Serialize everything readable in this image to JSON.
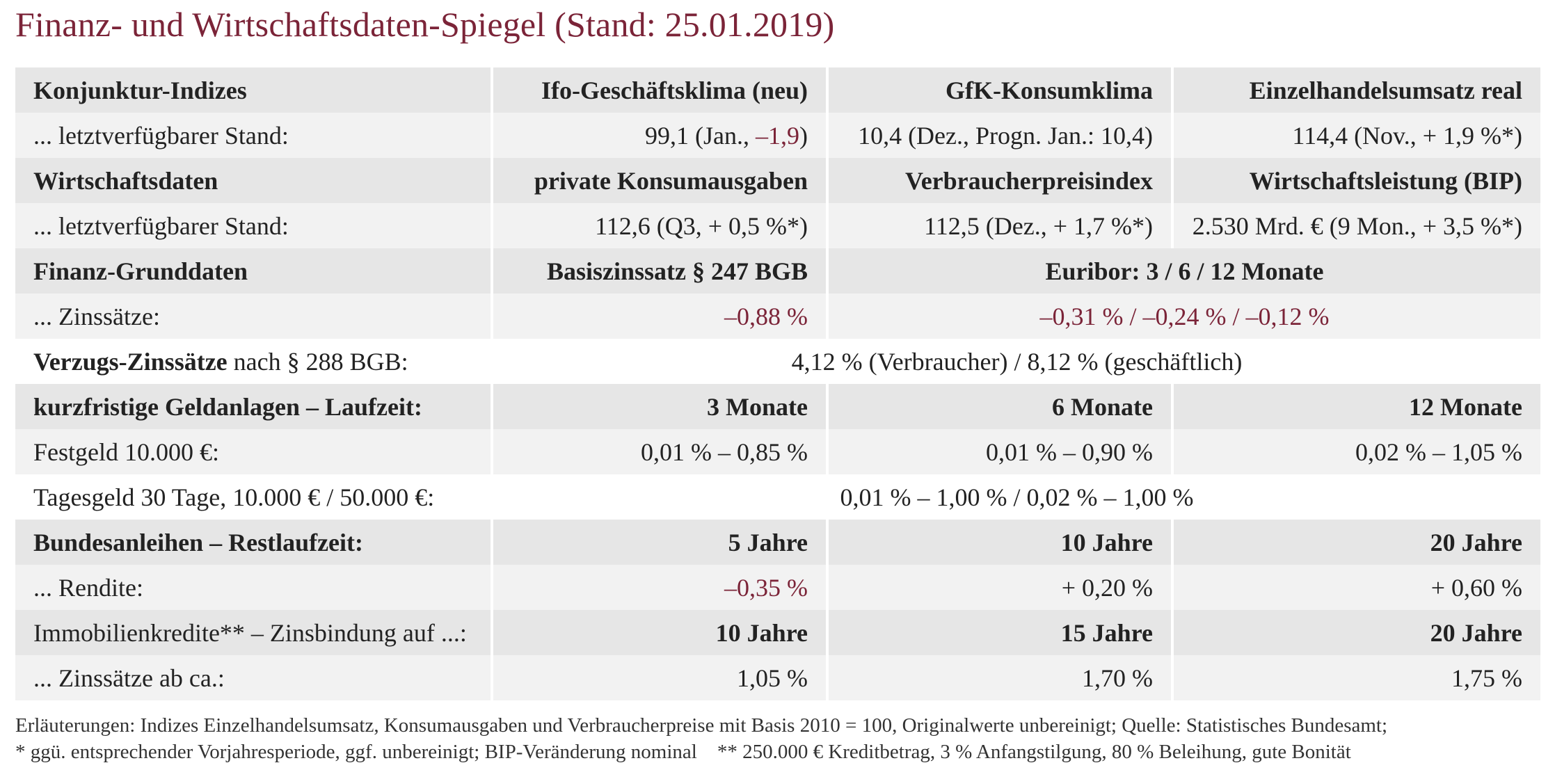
{
  "title": "Finanz- und Wirtschaftsdaten-Spiegel (Stand: 25.01.2019)",
  "konjunktur": {
    "header": [
      "Konjunktur-Indizes",
      "Ifo-Geschäftsklima (neu)",
      "GfK-Konsumklima",
      "Einzelhandelsumsatz real"
    ],
    "label": "... letztverfügbarer Stand:",
    "ifo_prefix": "99,1 (Jan., ",
    "ifo_change": "–1,9",
    "ifo_suffix": ")",
    "gfk": "10,4 (Dez., Progn. Jan.: 10,4)",
    "einzelhandel": "114,4 (Nov., + 1,9 %*)"
  },
  "wirtschaft": {
    "header": [
      "Wirtschaftsdaten",
      "private Konsumausgaben",
      "Verbraucherpreisindex",
      "Wirtschaftsleistung (BIP)"
    ],
    "label": "... letztverfügbarer Stand:",
    "values": [
      "112,6 (Q3, + 0,5 %*)",
      "112,5 (Dez., + 1,7 %*)",
      "2.530 Mrd. € (9 Mon., + 3,5 %*)"
    ]
  },
  "finanz": {
    "header": [
      "Finanz-Grunddaten",
      "Basiszinssatz § 247 BGB",
      "Euribor: 3 / 6 / 12 Monate"
    ],
    "label": "... Zinssätze:",
    "basiszins": "–0,88 %",
    "euribor": "–0,31 % / –0,24 % / –0,12 %"
  },
  "verzug": {
    "label_bold": "Verzugs-Zinssätze",
    "label_rest": " nach § 288 BGB:",
    "value": "4,12 % (Verbraucher) / 8,12 % (geschäftlich)"
  },
  "geldanlagen": {
    "header": [
      "kurzfristige Geldanlagen – Laufzeit:",
      "3 Monate",
      "6 Monate",
      "12 Monate"
    ],
    "festgeld_label": "Festgeld 10.000 €:",
    "festgeld_values": [
      "0,01 % – 0,85 %",
      "0,01 % – 0,90 %",
      "0,02 % – 1,05 %"
    ],
    "tagesgeld_label": "Tagesgeld 30 Tage, 10.000 € / 50.000 €:",
    "tagesgeld_value": "0,01 % – 1,00 % / 0,02 % – 1,00 %"
  },
  "bundesanleihen": {
    "header": [
      "Bundesanleihen – Restlaufzeit:",
      "5 Jahre",
      "10 Jahre",
      "20 Jahre"
    ],
    "label": "... Rendite:",
    "values": [
      "–0,35 %",
      "+ 0,20 %",
      "+ 0,60 %"
    ]
  },
  "immobilien": {
    "header": [
      "Immobilienkredite** – Zinsbindung auf ...:",
      "10 Jahre",
      "15 Jahre",
      "20 Jahre"
    ],
    "label": "... Zinssätze ab ca.:",
    "values": [
      "1,05 %",
      "1,70 %",
      "1,75 %"
    ]
  },
  "notes": [
    "Erläuterungen: Indizes Einzelhandelsumsatz, Konsumausgaben und Verbraucherpreise mit Basis 2010 = 100, Originalwerte unbereinigt; Quelle: Statistisches Bundesamt;",
    "* ggü. entsprechender Vorjahresperiode, ggf. unbereinigt; BIP-Veränderung nominal    ** 250.000 € Kreditbetrag, 3 % Anfangstilgung, 80 % Beleihung, gute Bonität"
  ],
  "colors": {
    "accent": "#7b2438",
    "header_bg": "#e6e6e6",
    "value_bg": "#f2f2f2"
  }
}
